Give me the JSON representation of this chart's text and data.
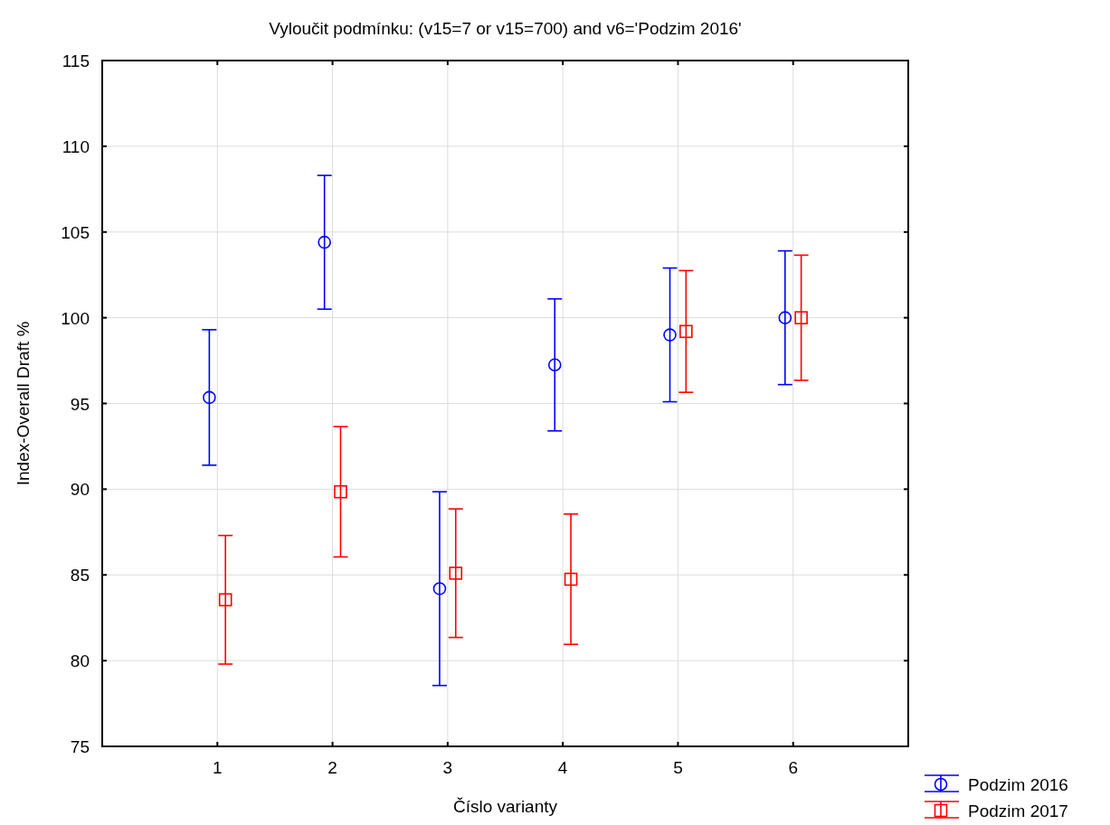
{
  "chart_data": {
    "type": "scatter",
    "title": "Vyloučit podmínku: (v15=7 or v15=700) and v6='Podzim 2016'",
    "xlabel": "Číslo varianty",
    "ylabel": "Index-Overall Draft %",
    "xlim": [
      0,
      7
    ],
    "xticks": [
      1,
      2,
      3,
      4,
      5,
      6
    ],
    "ylim": [
      75,
      115
    ],
    "yticks": [
      75,
      80,
      85,
      90,
      95,
      100,
      105,
      110,
      115
    ],
    "grid": true,
    "legend": "bottom right",
    "series": [
      {
        "name": "Podzim 2016",
        "color": "#0000ff",
        "marker": "circle",
        "x": [
          0.93,
          1.93,
          2.93,
          3.93,
          4.93,
          5.93
        ],
        "values": [
          95.35,
          104.4,
          84.2,
          97.25,
          99.0,
          100.0
        ],
        "errors": [
          3.95,
          3.9,
          5.65,
          3.85,
          3.9,
          3.9
        ]
      },
      {
        "name": "Podzim 2017",
        "color": "#ff0000",
        "marker": "square",
        "x": [
          1.07,
          2.07,
          3.07,
          4.07,
          5.07,
          6.07
        ],
        "values": [
          83.55,
          89.85,
          85.1,
          84.75,
          99.2,
          100.0
        ],
        "errors": [
          3.75,
          3.8,
          3.75,
          3.8,
          3.55,
          3.65
        ]
      }
    ]
  }
}
